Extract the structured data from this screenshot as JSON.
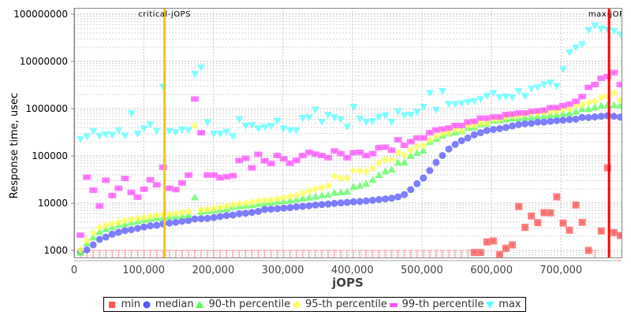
{
  "chart_data": {
    "type": "scatter",
    "title": "",
    "xlabel": "jOPS",
    "ylabel": "Response time, usec",
    "xscale": "linear",
    "yscale": "log",
    "xlim": [
      0,
      787000
    ],
    "ylim": [
      708,
      136000000
    ],
    "grid": true,
    "legend_position": "bottom",
    "x_ticks": [
      0,
      100000,
      200000,
      300000,
      400000,
      500000,
      600000,
      700000
    ],
    "x_tick_labels": [
      "0",
      "100,000",
      "200,000",
      "300,000",
      "400,000",
      "500,000",
      "600,000",
      "700,000"
    ],
    "y_ticks": [
      1000,
      10000,
      100000,
      1000000,
      10000000,
      100000000
    ],
    "y_tick_labels": [
      "1000",
      "10000",
      "100000",
      "1000000",
      "10000000",
      "100000000"
    ],
    "markers": [
      {
        "label": "critical-jOPS",
        "x": 130000,
        "color": "#f5c518"
      },
      {
        "label": "max-jOPS",
        "x": 769000,
        "color": "#ff0000"
      }
    ],
    "x": [
      9130,
      18260,
      27390,
      36520,
      45650,
      54780,
      63910,
      73040,
      82170,
      91300,
      100430,
      109560,
      118690,
      127820,
      136950,
      146080,
      155210,
      164340,
      173470,
      182600,
      191730,
      200860,
      209990,
      219120,
      228250,
      237380,
      246510,
      255640,
      264770,
      273900,
      283030,
      292160,
      301290,
      310420,
      319550,
      328680,
      337810,
      346940,
      356070,
      365200,
      374330,
      383460,
      392590,
      401720,
      410850,
      419980,
      429110,
      438240,
      447370,
      456500,
      465630,
      474760,
      483890,
      493020,
      502150,
      511280,
      520410,
      529540,
      538670,
      547800,
      556930,
      566060,
      575190,
      584320,
      593450,
      602580,
      611710,
      620840,
      629970,
      639100,
      648230,
      657360,
      666490,
      675620,
      684750,
      693880,
      703010,
      712140,
      721270,
      730400,
      739530,
      748660,
      757790,
      766920,
      776050,
      785180
    ],
    "series": [
      {
        "name": "min",
        "color": "#ff5555",
        "marker": "square",
        "values": [
          null,
          null,
          null,
          null,
          null,
          null,
          null,
          null,
          null,
          null,
          null,
          null,
          null,
          null,
          null,
          null,
          null,
          null,
          null,
          null,
          null,
          null,
          null,
          null,
          null,
          null,
          null,
          null,
          null,
          null,
          null,
          null,
          null,
          null,
          null,
          null,
          null,
          null,
          null,
          null,
          null,
          null,
          null,
          null,
          null,
          null,
          null,
          null,
          null,
          null,
          null,
          null,
          null,
          null,
          null,
          null,
          null,
          null,
          null,
          null,
          null,
          null,
          902,
          902,
          1510,
          1585,
          816,
          1110,
          1310,
          8500,
          3080,
          5350,
          3880,
          6310,
          6250,
          13600,
          3790,
          2680,
          9170,
          3930,
          1000,
          null,
          2580,
          56000,
          2390,
          2070
        ]
      },
      {
        "name": "median",
        "color": "#5555ff",
        "marker": "circle",
        "values": [
          950,
          1030,
          1310,
          1710,
          1920,
          2210,
          2420,
          2640,
          2740,
          2930,
          3130,
          3330,
          3410,
          3640,
          3790,
          3930,
          4140,
          4300,
          4640,
          4700,
          4770,
          4960,
          5210,
          5460,
          5600,
          5990,
          6130,
          6380,
          6700,
          7360,
          7450,
          7640,
          7850,
          8050,
          8370,
          8570,
          8800,
          9150,
          9380,
          9620,
          9890,
          10140,
          10400,
          10700,
          10900,
          11200,
          11500,
          11970,
          12300,
          12700,
          13600,
          15200,
          19400,
          25800,
          34000,
          49000,
          73000,
          102000,
          140000,
          175000,
          210000,
          240000,
          280000,
          311000,
          345000,
          364000,
          378000,
          400000,
          430000,
          460000,
          480000,
          490000,
          520000,
          520000,
          540000,
          560000,
          570000,
          590000,
          600000,
          650000,
          650000,
          670000,
          690000,
          710000,
          690000,
          660000
        ]
      },
      {
        "name": "90-th percentile",
        "color": "#55ff55",
        "marker": "triangle-up",
        "values": [
          900,
          1410,
          1900,
          2480,
          2820,
          3130,
          3460,
          3690,
          3930,
          4170,
          4470,
          4700,
          4880,
          4960,
          5210,
          5410,
          5410,
          5690,
          13400,
          6630,
          6880,
          7050,
          7360,
          7560,
          8370,
          8700,
          8900,
          9250,
          9720,
          10100,
          10500,
          10900,
          11200,
          11500,
          12100,
          12700,
          13200,
          13900,
          14700,
          15200,
          16700,
          17100,
          17600,
          22200,
          23600,
          25800,
          31300,
          39400,
          47800,
          51600,
          73000,
          73000,
          101000,
          117000,
          131000,
          201000,
          231000,
          270000,
          300000,
          320000,
          335000,
          400000,
          400000,
          470000,
          490000,
          560000,
          580000,
          600000,
          630000,
          630000,
          650000,
          670000,
          700000,
          710000,
          740000,
          750000,
          790000,
          810000,
          870000,
          1000000,
          990000,
          1080000,
          1160000,
          1200000,
          1200000,
          1170000
        ]
      },
      {
        "name": "95-th percentile",
        "color": "#ffff55",
        "marker": "diamond",
        "values": [
          1030,
          1590,
          2350,
          3050,
          3410,
          3690,
          3930,
          4300,
          4520,
          4770,
          4960,
          5160,
          5560,
          5780,
          5780,
          6080,
          6310,
          6730,
          430000,
          7170,
          7360,
          7740,
          8160,
          8570,
          9250,
          9720,
          10100,
          10500,
          11200,
          11500,
          11700,
          12400,
          13100,
          13900,
          14700,
          16200,
          18000,
          20000,
          21300,
          23600,
          37100,
          34000,
          33800,
          48800,
          48800,
          46900,
          55600,
          71600,
          83700,
          83700,
          117000,
          105000,
          132000,
          158000,
          168000,
          218000,
          260000,
          290000,
          311000,
          364000,
          345000,
          440000,
          440000,
          490000,
          500000,
          600000,
          600000,
          670000,
          710000,
          710000,
          770000,
          810000,
          810000,
          830000,
          870000,
          890000,
          950000,
          1000000,
          1170000,
          1200000,
          1370000,
          1430000,
          1730000,
          1850000,
          2150000,
          1500000
        ]
      },
      {
        "name": "99-th percentile",
        "color": "#ff55ff",
        "marker": "rect",
        "values": [
          2100,
          35500,
          18800,
          8700,
          30600,
          14500,
          20700,
          33300,
          16900,
          13400,
          19800,
          31200,
          24400,
          57600,
          20700,
          19400,
          26800,
          39400,
          1600000,
          310000,
          39400,
          39400,
          34600,
          36400,
          38300,
          80000,
          89000,
          56000,
          108000,
          79000,
          69000,
          102000,
          86500,
          70000,
          81000,
          102000,
          119000,
          109000,
          102000,
          92000,
          127000,
          112000,
          92000,
          117000,
          119000,
          102000,
          112000,
          150000,
          153000,
          132000,
          220000,
          168000,
          200000,
          241000,
          241000,
          311000,
          355000,
          370000,
          390000,
          440000,
          440000,
          520000,
          540000,
          630000,
          630000,
          670000,
          670000,
          750000,
          770000,
          810000,
          810000,
          870000,
          900000,
          930000,
          1050000,
          1050000,
          1160000,
          1250000,
          1430000,
          1800000,
          2830000,
          3250000,
          4400000,
          4800000,
          5800000,
          3250000
        ]
      },
      {
        "name": "max",
        "color": "#55ffff",
        "marker": "triangle-down",
        "values": [
          226000,
          258000,
          333000,
          264000,
          285000,
          278000,
          346000,
          268000,
          794000,
          295000,
          380000,
          460000,
          333000,
          2900000,
          333000,
          316000,
          360000,
          350000,
          5400000,
          7400000,
          510000,
          295000,
          295000,
          322000,
          258000,
          590000,
          430000,
          450000,
          380000,
          405000,
          430000,
          550000,
          380000,
          346000,
          346000,
          630000,
          650000,
          950000,
          520000,
          735000,
          650000,
          590000,
          410000,
          1080000,
          610000,
          520000,
          540000,
          660000,
          720000,
          520000,
          870000,
          720000,
          735000,
          850000,
          1080000,
          2150000,
          950000,
          2330000,
          1250000,
          1250000,
          1290000,
          1370000,
          1430000,
          1580000,
          1850000,
          2150000,
          1730000,
          1800000,
          1730000,
          2330000,
          1850000,
          2640000,
          2830000,
          3250000,
          3550000,
          3000000,
          6800000,
          15500000,
          19400000,
          23000000,
          46000000,
          57000000,
          49000000,
          47000000,
          44000000,
          37000000
        ]
      }
    ]
  }
}
